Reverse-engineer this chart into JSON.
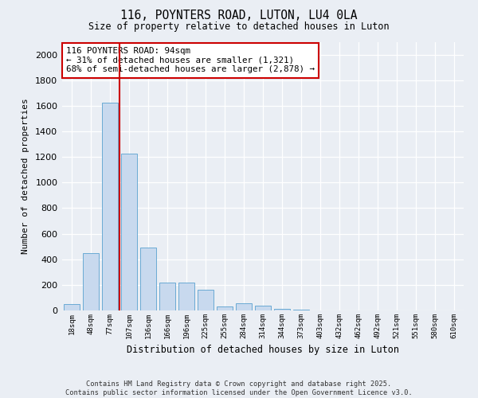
{
  "title": "116, POYNTERS ROAD, LUTON, LU4 0LA",
  "subtitle": "Size of property relative to detached houses in Luton",
  "xlabel": "Distribution of detached houses by size in Luton",
  "ylabel": "Number of detached properties",
  "categories": [
    "18sqm",
    "48sqm",
    "77sqm",
    "107sqm",
    "136sqm",
    "166sqm",
    "196sqm",
    "225sqm",
    "255sqm",
    "284sqm",
    "314sqm",
    "344sqm",
    "373sqm",
    "403sqm",
    "432sqm",
    "462sqm",
    "492sqm",
    "521sqm",
    "551sqm",
    "580sqm",
    "610sqm"
  ],
  "values": [
    50,
    450,
    1625,
    1225,
    490,
    220,
    215,
    160,
    30,
    55,
    35,
    12,
    5,
    3,
    2,
    1,
    0,
    0,
    0,
    0,
    0
  ],
  "bar_color": "#c8d9ee",
  "bar_edge_color": "#6aaad4",
  "vline_color": "#cc0000",
  "annotation_text": "116 POYNTERS ROAD: 94sqm\n← 31% of detached houses are smaller (1,321)\n68% of semi-detached houses are larger (2,878) →",
  "annotation_box_facecolor": "#ffffff",
  "annotation_box_edgecolor": "#cc0000",
  "ylim": [
    0,
    2100
  ],
  "yticks": [
    0,
    200,
    400,
    600,
    800,
    1000,
    1200,
    1400,
    1600,
    1800,
    2000
  ],
  "footer_line1": "Contains HM Land Registry data © Crown copyright and database right 2025.",
  "footer_line2": "Contains public sector information licensed under the Open Government Licence v3.0.",
  "bg_color": "#eaeef4",
  "plot_bg_color": "#eaeef4",
  "grid_color": "#ffffff"
}
